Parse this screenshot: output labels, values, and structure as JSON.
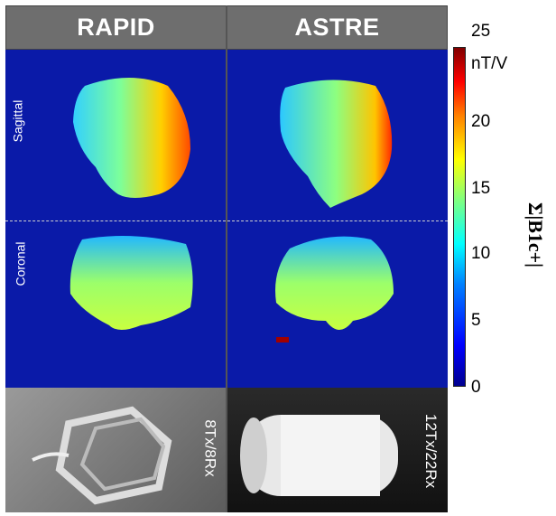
{
  "columns": [
    {
      "title": "RAPID",
      "config": "8Tx/8Rx"
    },
    {
      "title": "ASTRE",
      "config": "12Tx/22Rx"
    }
  ],
  "rows": [
    {
      "label": "Sagittal"
    },
    {
      "label": "Coronal"
    }
  ],
  "colorbar": {
    "ticks": [
      "25",
      "20",
      "15",
      "10",
      "5",
      "0"
    ],
    "unit": "nT/V",
    "symbol": "Σ|B1c+|",
    "colors": [
      "#00008f",
      "#0000ff",
      "#00ffff",
      "#ffff00",
      "#ff0000",
      "#800000"
    ]
  }
}
